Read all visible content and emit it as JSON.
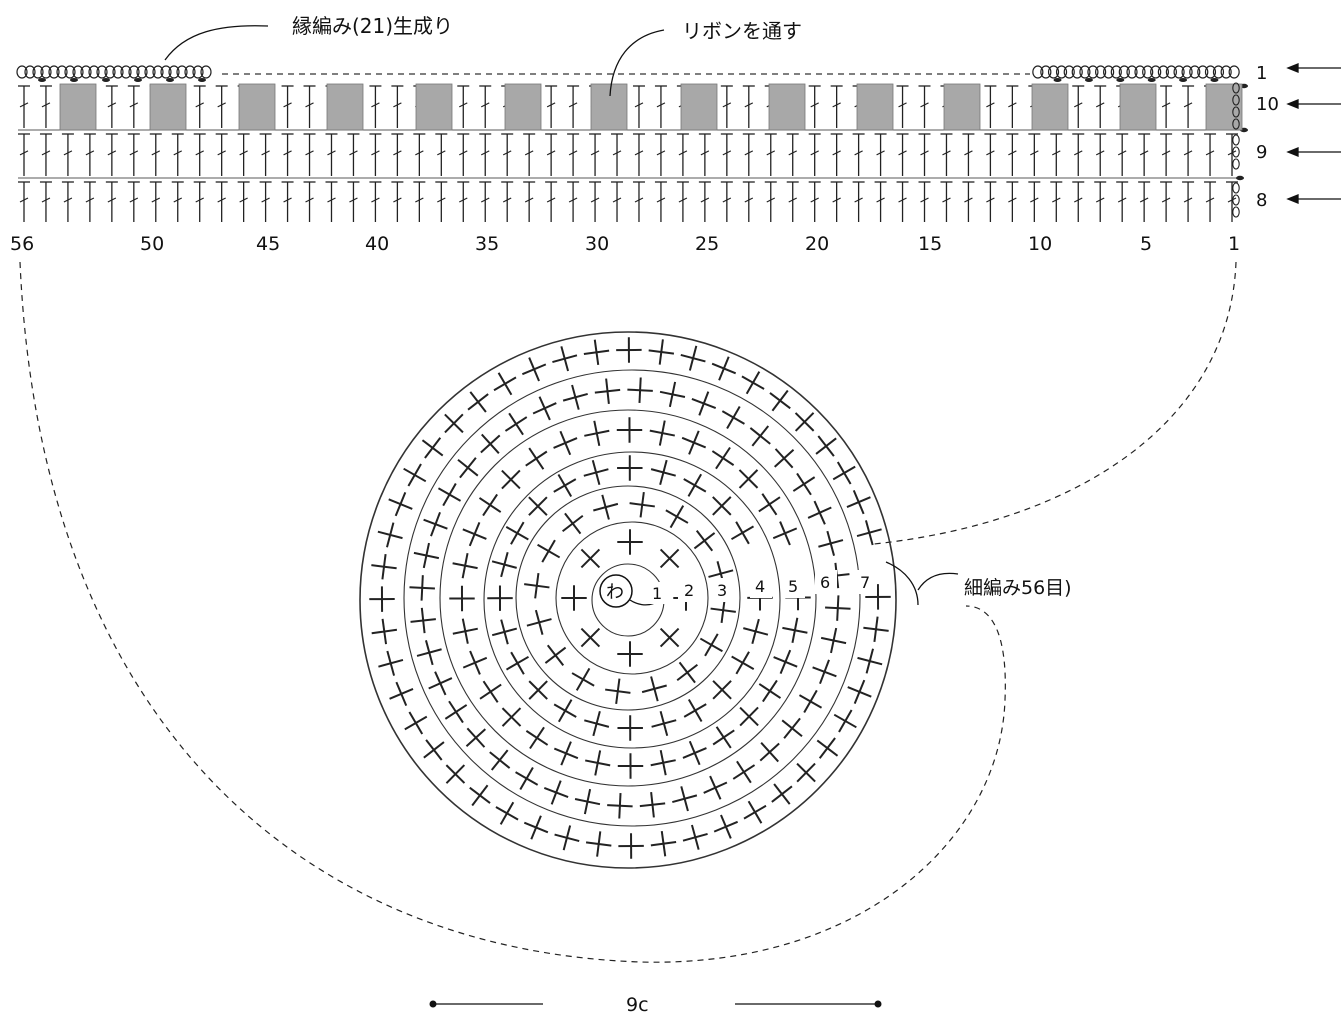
{
  "annotations": {
    "edging": "縁編み(21)生成り",
    "ribbon": "リボンを通す",
    "base_count": "細編み56目)",
    "center_ring": "わ",
    "dimension": "9c"
  },
  "row_labels": [
    "1",
    "10",
    "9",
    "8"
  ],
  "stitch_numbers": [
    "56",
    "50",
    "45",
    "40",
    "35",
    "30",
    "25",
    "20",
    "15",
    "10",
    "5",
    "1"
  ],
  "round_numbers": [
    "1",
    "2",
    "3",
    "4",
    "5",
    "6",
    "7"
  ],
  "colors": {
    "ribbon_fill": "#a8a8a8",
    "ink": "#222222"
  },
  "icons": {
    "treble_crochet": "tall-stitch-symbol",
    "single_crochet": "x-stitch-symbol",
    "chain": "chain-loop-symbol",
    "row_arrow": "left-arrow-icon"
  }
}
